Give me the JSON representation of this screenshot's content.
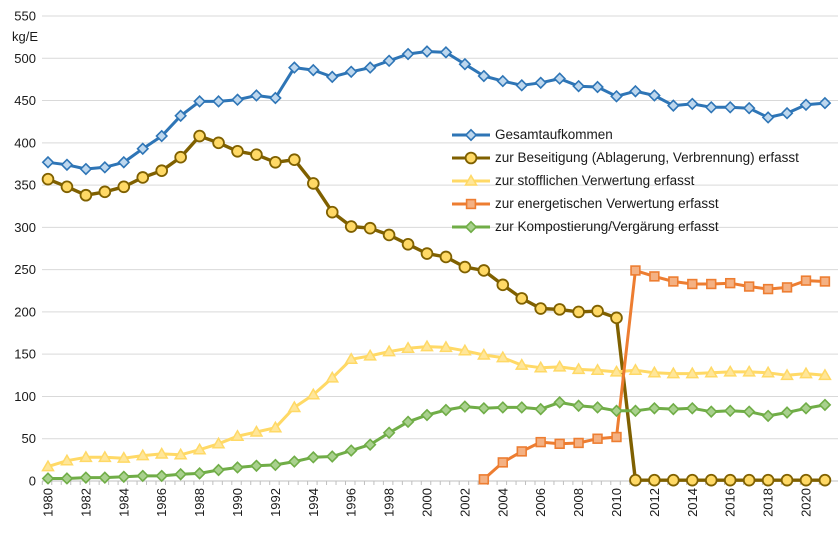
{
  "chart_data": {
    "type": "line",
    "title": "",
    "unit_label": "kg/E",
    "xlabel": "",
    "ylabel": "kg/E",
    "ylim": [
      0,
      550
    ],
    "ytick_step": 50,
    "grid": "horizontal",
    "legend_position": "inside-right-upper",
    "background_color": "#FFFFFF",
    "grid_color": "#D9D9D9",
    "axis_color": "#BFBFBF",
    "text_color": "#1A1A1A",
    "x": [
      1980,
      1981,
      1982,
      1983,
      1984,
      1985,
      1986,
      1987,
      1988,
      1989,
      1990,
      1991,
      1992,
      1993,
      1994,
      1995,
      1996,
      1997,
      1998,
      1999,
      2000,
      2001,
      2002,
      2003,
      2004,
      2005,
      2006,
      2007,
      2008,
      2009,
      2010,
      2011,
      2012,
      2013,
      2014,
      2015,
      2016,
      2017,
      2018,
      2019,
      2020,
      2021
    ],
    "x_tick_labels": [
      "1980",
      "1982",
      "1984",
      "1986",
      "1988",
      "1990",
      "1992",
      "1994",
      "1996",
      "1998",
      "2000",
      "2002",
      "2004",
      "2006",
      "2008",
      "2010",
      "2012",
      "2014",
      "2016",
      "2018",
      "2020"
    ],
    "series": [
      {
        "name": "Gesamtaufkommen",
        "marker": "diamond",
        "line_color": "#2E75B6",
        "marker_fill": "#BDD7EE",
        "values": [
          377,
          374,
          369,
          371,
          377,
          393,
          408,
          432,
          449,
          449,
          451,
          456,
          453,
          489,
          486,
          478,
          484,
          489,
          497,
          505,
          508,
          507,
          493,
          479,
          473,
          468,
          471,
          476,
          467,
          466,
          455,
          461,
          456,
          444,
          446,
          442,
          442,
          441,
          430,
          435,
          445,
          447
        ]
      },
      {
        "name": "zur Beseitigung (Ablagerung, Verbrennung) erfasst",
        "marker": "circle",
        "line_color": "#7F6000",
        "marker_fill": "#FFD966",
        "values": [
          357,
          348,
          338,
          342,
          348,
          359,
          367,
          383,
          408,
          400,
          390,
          386,
          377,
          380,
          352,
          318,
          301,
          299,
          291,
          280,
          269,
          265,
          253,
          249,
          232,
          216,
          204,
          203,
          200,
          201,
          193,
          1,
          1,
          1,
          1,
          1,
          1,
          1,
          1,
          1,
          1,
          1
        ]
      },
      {
        "name": "zur stofflichen Verwertung erfasst",
        "marker": "triangle",
        "line_color": "#FFD966",
        "marker_fill": "#FFE699",
        "values": [
          17,
          24,
          28,
          28,
          27,
          30,
          32,
          31,
          37,
          44,
          53,
          58,
          63,
          87,
          102,
          122,
          144,
          148,
          153,
          157,
          159,
          158,
          154,
          149,
          146,
          137,
          134,
          135,
          132,
          131,
          129,
          131,
          128,
          127,
          127,
          128,
          129,
          129,
          128,
          125,
          127,
          125
        ]
      },
      {
        "name": "zur energetischen Verwertung erfasst",
        "marker": "square",
        "line_color": "#ED7D31",
        "marker_fill": "#F4B183",
        "values": [
          null,
          null,
          null,
          null,
          null,
          null,
          null,
          null,
          null,
          null,
          null,
          null,
          null,
          null,
          null,
          null,
          null,
          null,
          null,
          null,
          null,
          null,
          null,
          2,
          22,
          35,
          46,
          44,
          45,
          50,
          52,
          249,
          242,
          236,
          233,
          233,
          234,
          230,
          227,
          229,
          237,
          236
        ]
      },
      {
        "name": "zur Kompostierung/Vergärung erfasst",
        "marker": "diamond",
        "line_color": "#70AD47",
        "marker_fill": "#A9D18E",
        "values": [
          3,
          3,
          4,
          4,
          5,
          6,
          6,
          8,
          9,
          13,
          16,
          18,
          19,
          23,
          28,
          29,
          36,
          43,
          57,
          70,
          78,
          84,
          88,
          86,
          87,
          87,
          85,
          93,
          89,
          87,
          83,
          83,
          86,
          85,
          86,
          82,
          83,
          82,
          77,
          81,
          86,
          90
        ]
      }
    ]
  }
}
